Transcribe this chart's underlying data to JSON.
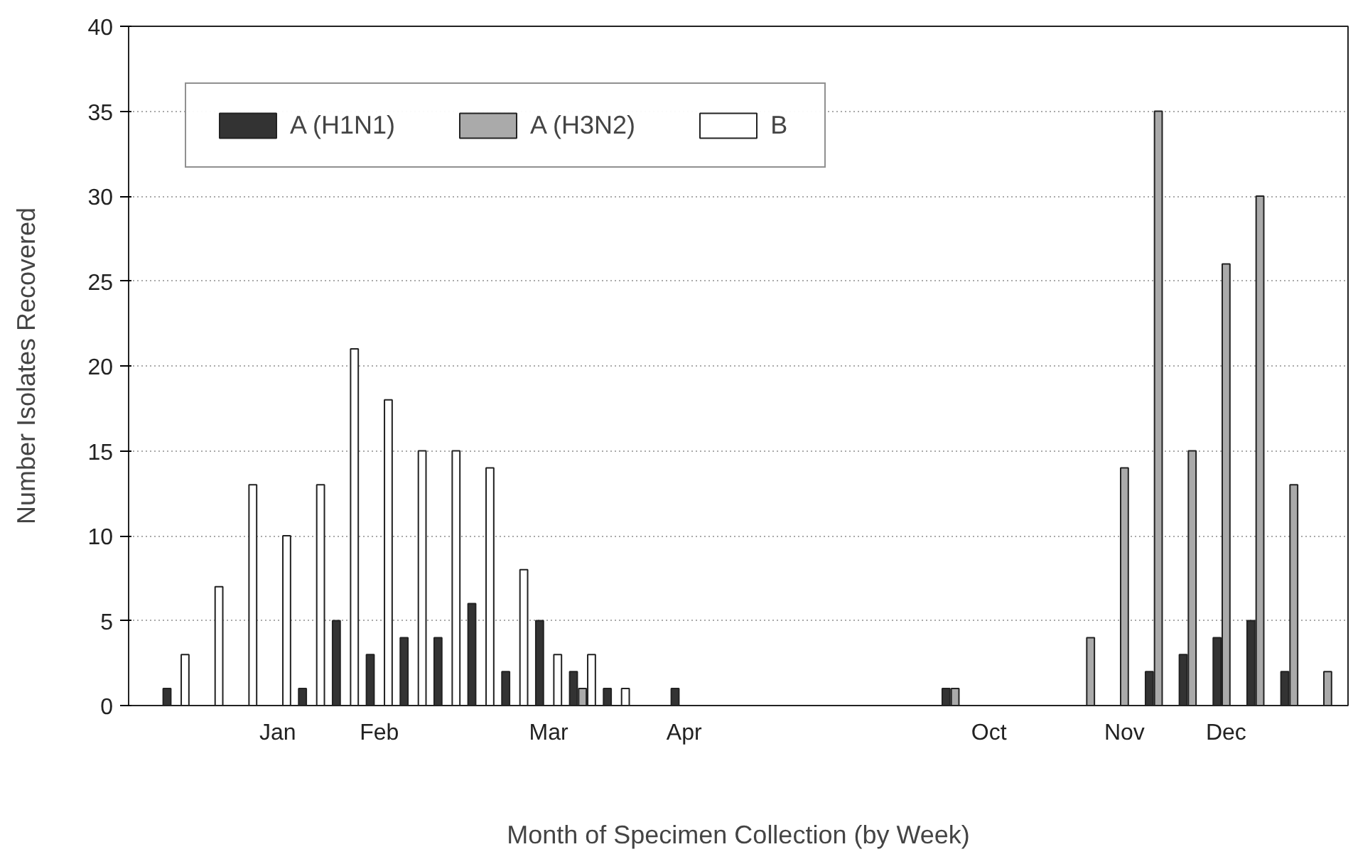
{
  "chart_data": {
    "type": "bar",
    "xlabel": "Month of Specimen Collection (by Week)",
    "ylabel": "Number Isolates Recovered",
    "categories": [
      null,
      null,
      null,
      "Jan",
      null,
      null,
      "Feb",
      null,
      null,
      null,
      null,
      "Mar",
      null,
      null,
      null,
      "Apr",
      null,
      null,
      null,
      null,
      null,
      null,
      null,
      null,
      "Oct",
      null,
      null,
      null,
      "Nov",
      null,
      null,
      "Dec",
      null,
      null,
      null
    ],
    "series": [
      {
        "name": "A (H1N1)",
        "color": "#333333",
        "values": [
          1,
          0,
          0,
          0,
          1,
          5,
          3,
          4,
          4,
          6,
          2,
          5,
          2,
          1,
          0,
          1,
          0,
          0,
          0,
          0,
          0,
          0,
          0,
          1,
          0,
          0,
          0,
          0,
          0,
          2,
          3,
          4,
          5,
          2,
          0
        ]
      },
      {
        "name": "A (H3N2)",
        "color": "#aaaaaa",
        "values": [
          0,
          0,
          0,
          0,
          0,
          0,
          0,
          0,
          0,
          0,
          0,
          0,
          1,
          0,
          0,
          0,
          0,
          0,
          0,
          0,
          0,
          0,
          0,
          1,
          0,
          0,
          0,
          4,
          14,
          35,
          15,
          26,
          30,
          13,
          2
        ]
      },
      {
        "name": "B",
        "color": "#ffffff",
        "values": [
          3,
          7,
          13,
          10,
          13,
          21,
          18,
          15,
          15,
          14,
          8,
          3,
          3,
          1,
          0,
          0,
          0,
          0,
          0,
          0,
          0,
          0,
          0,
          0,
          0,
          0,
          0,
          0,
          0,
          0,
          0,
          0,
          0,
          0,
          0
        ]
      }
    ],
    "ylim": [
      0,
      40
    ],
    "yticks": [
      0,
      5,
      10,
      15,
      20,
      25,
      30,
      35,
      40
    ],
    "grid": "y",
    "legend": "top left"
  }
}
